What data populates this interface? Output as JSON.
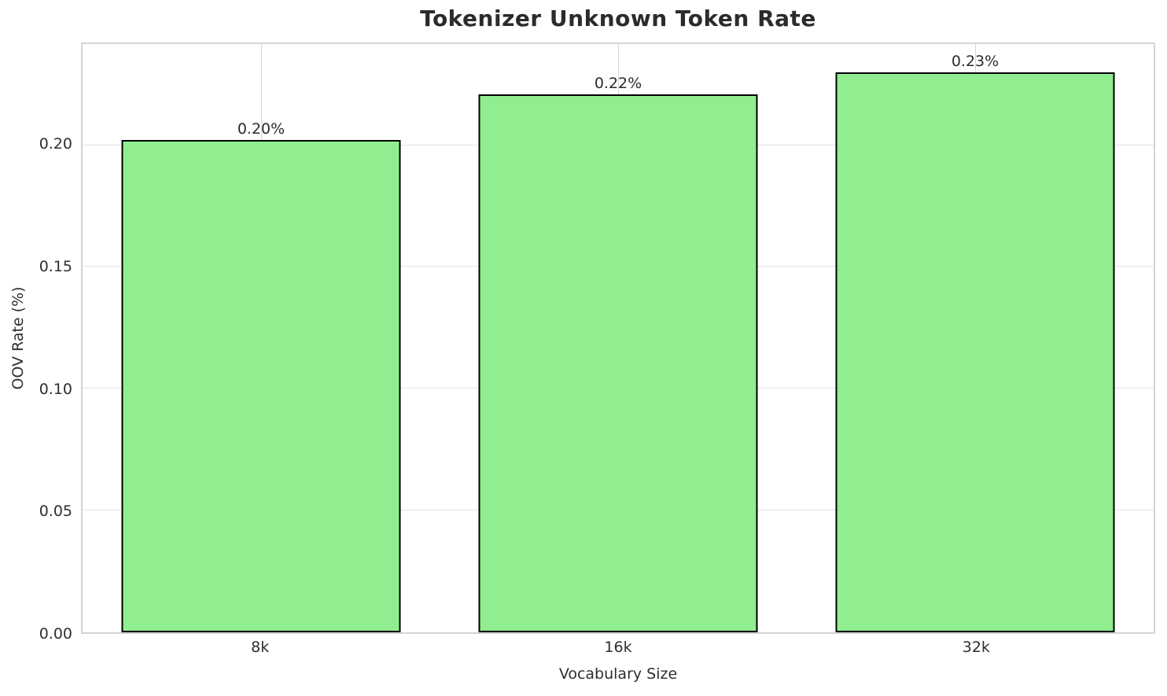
{
  "chart_data": {
    "type": "bar",
    "title": "Tokenizer Unknown Token Rate",
    "xlabel": "Vocabulary Size",
    "ylabel": "OOV Rate (%)",
    "categories": [
      "8k",
      "16k",
      "32k"
    ],
    "values": [
      0.202,
      0.221,
      0.23
    ],
    "bar_value_labels": [
      "0.20%",
      "0.22%",
      "0.23%"
    ],
    "yticks": [
      0.0,
      0.05,
      0.1,
      0.15,
      0.2
    ],
    "ytick_labels": [
      "0.00",
      "0.05",
      "0.10",
      "0.15",
      "0.20"
    ],
    "ylim": [
      0,
      0.2415
    ],
    "bar_color": "#90EE90",
    "bar_edge_color": "#000000",
    "grid": true,
    "legend": false
  }
}
